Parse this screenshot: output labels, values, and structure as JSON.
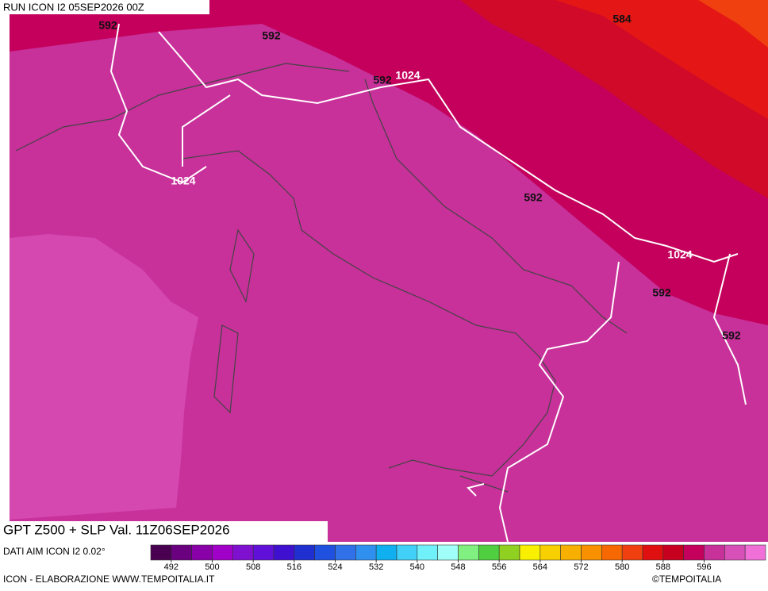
{
  "header": {
    "run": "RUN ICON I2 05SEP2026 00Z"
  },
  "map": {
    "z500_labels": [
      592,
      592,
      592,
      584,
      592,
      592,
      592
    ],
    "slp_labels": [
      1024,
      1024,
      1024
    ]
  },
  "footer": {
    "title": "GPT Z500 + SLP Val. 11Z06SEP2026",
    "source": "DATI AIM ICON I2 0.02°",
    "credit": "ICON - ELABORAZIONE WWW.TEMPOITALIA.IT",
    "copyright": "©TEMPOITALIA"
  },
  "colorbar": {
    "range": [
      488,
      608
    ],
    "colors": [
      "#4a0050",
      "#6a0080",
      "#8a00a8",
      "#a000c8",
      "#8010d0",
      "#6010d8",
      "#4010d0",
      "#2030d0",
      "#2050e0",
      "#3070e8",
      "#3090f0",
      "#10b0f0",
      "#40d0f8",
      "#70f0f8",
      "#a0fff8",
      "#80f080",
      "#50d040",
      "#90d020",
      "#f8f000",
      "#f8d000",
      "#f8b000",
      "#f89000",
      "#f86800",
      "#f04010",
      "#e01010",
      "#c80020",
      "#c4005c",
      "#c8309a",
      "#d650b8",
      "#f070d8"
    ],
    "ticks": [
      492,
      500,
      508,
      516,
      524,
      532,
      540,
      548,
      556,
      564,
      572,
      580,
      588,
      596
    ]
  }
}
